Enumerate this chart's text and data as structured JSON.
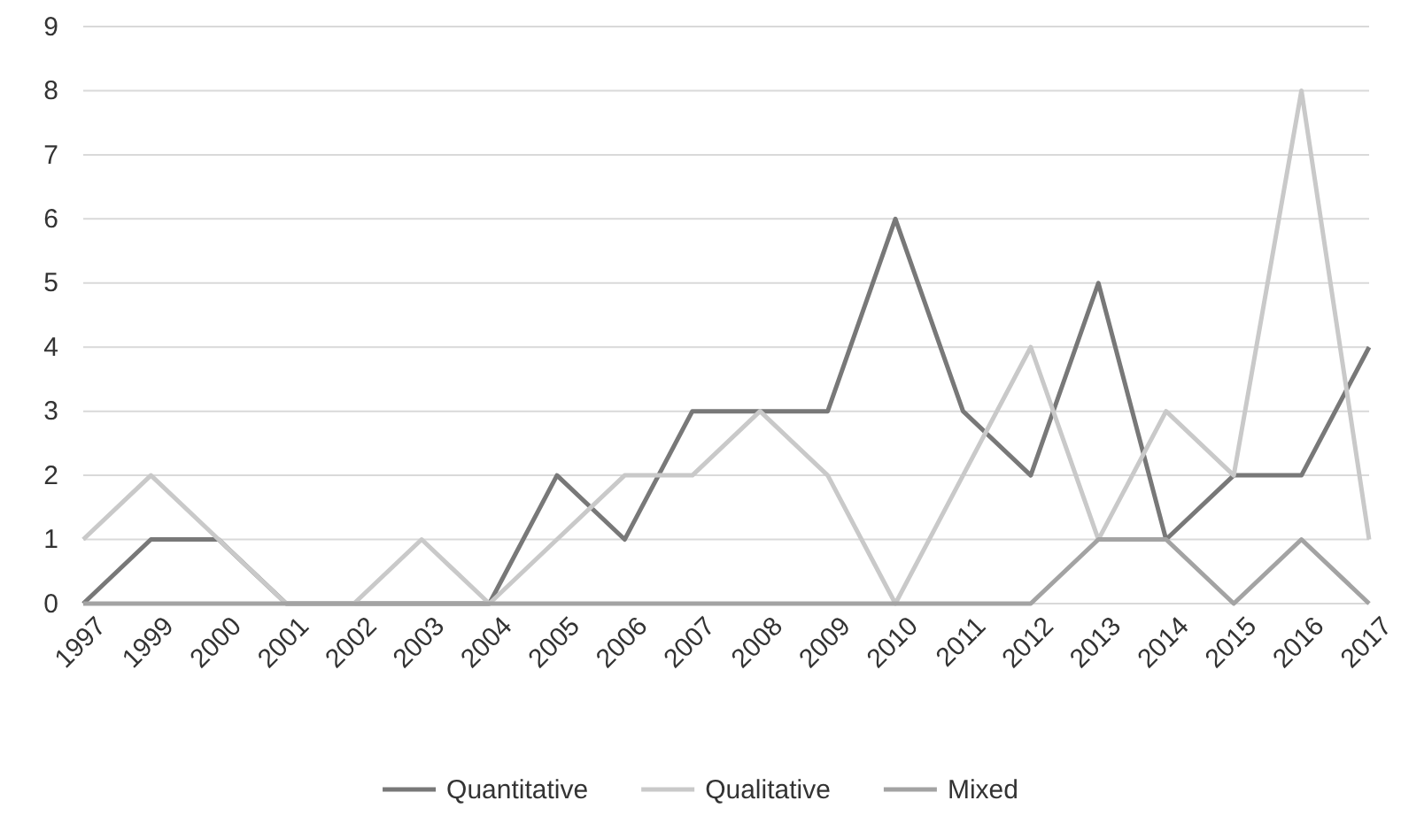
{
  "chart_data": {
    "type": "line",
    "categories": [
      "1997",
      "1999",
      "2000",
      "2001",
      "2002",
      "2003",
      "2004",
      "2005",
      "2006",
      "2007",
      "2008",
      "2009",
      "2010",
      "2011",
      "2012",
      "2013",
      "2014",
      "2015",
      "2016",
      "2017"
    ],
    "series": [
      {
        "name": "Quantitative",
        "color": "#787878",
        "values": [
          0,
          1,
          1,
          0,
          0,
          0,
          0,
          2,
          1,
          3,
          3,
          3,
          6,
          3,
          2,
          5,
          1,
          2,
          2,
          4
        ]
      },
      {
        "name": "Qualitative",
        "color": "#c9c9c9",
        "values": [
          1,
          2,
          1,
          0,
          0,
          1,
          0,
          1,
          2,
          2,
          3,
          2,
          0,
          2,
          4,
          1,
          3,
          2,
          8,
          1
        ]
      },
      {
        "name": "Mixed",
        "color": "#a3a3a3",
        "values": [
          0,
          0,
          0,
          0,
          0,
          0,
          0,
          0,
          0,
          0,
          0,
          0,
          0,
          0,
          0,
          1,
          1,
          0,
          1,
          0
        ]
      }
    ],
    "ylim": [
      0,
      9
    ],
    "yticks": [
      0,
      1,
      2,
      3,
      4,
      5,
      6,
      7,
      8,
      9
    ],
    "grid": "y",
    "legend": "bottom",
    "marker": "none",
    "line_style": "solid"
  }
}
